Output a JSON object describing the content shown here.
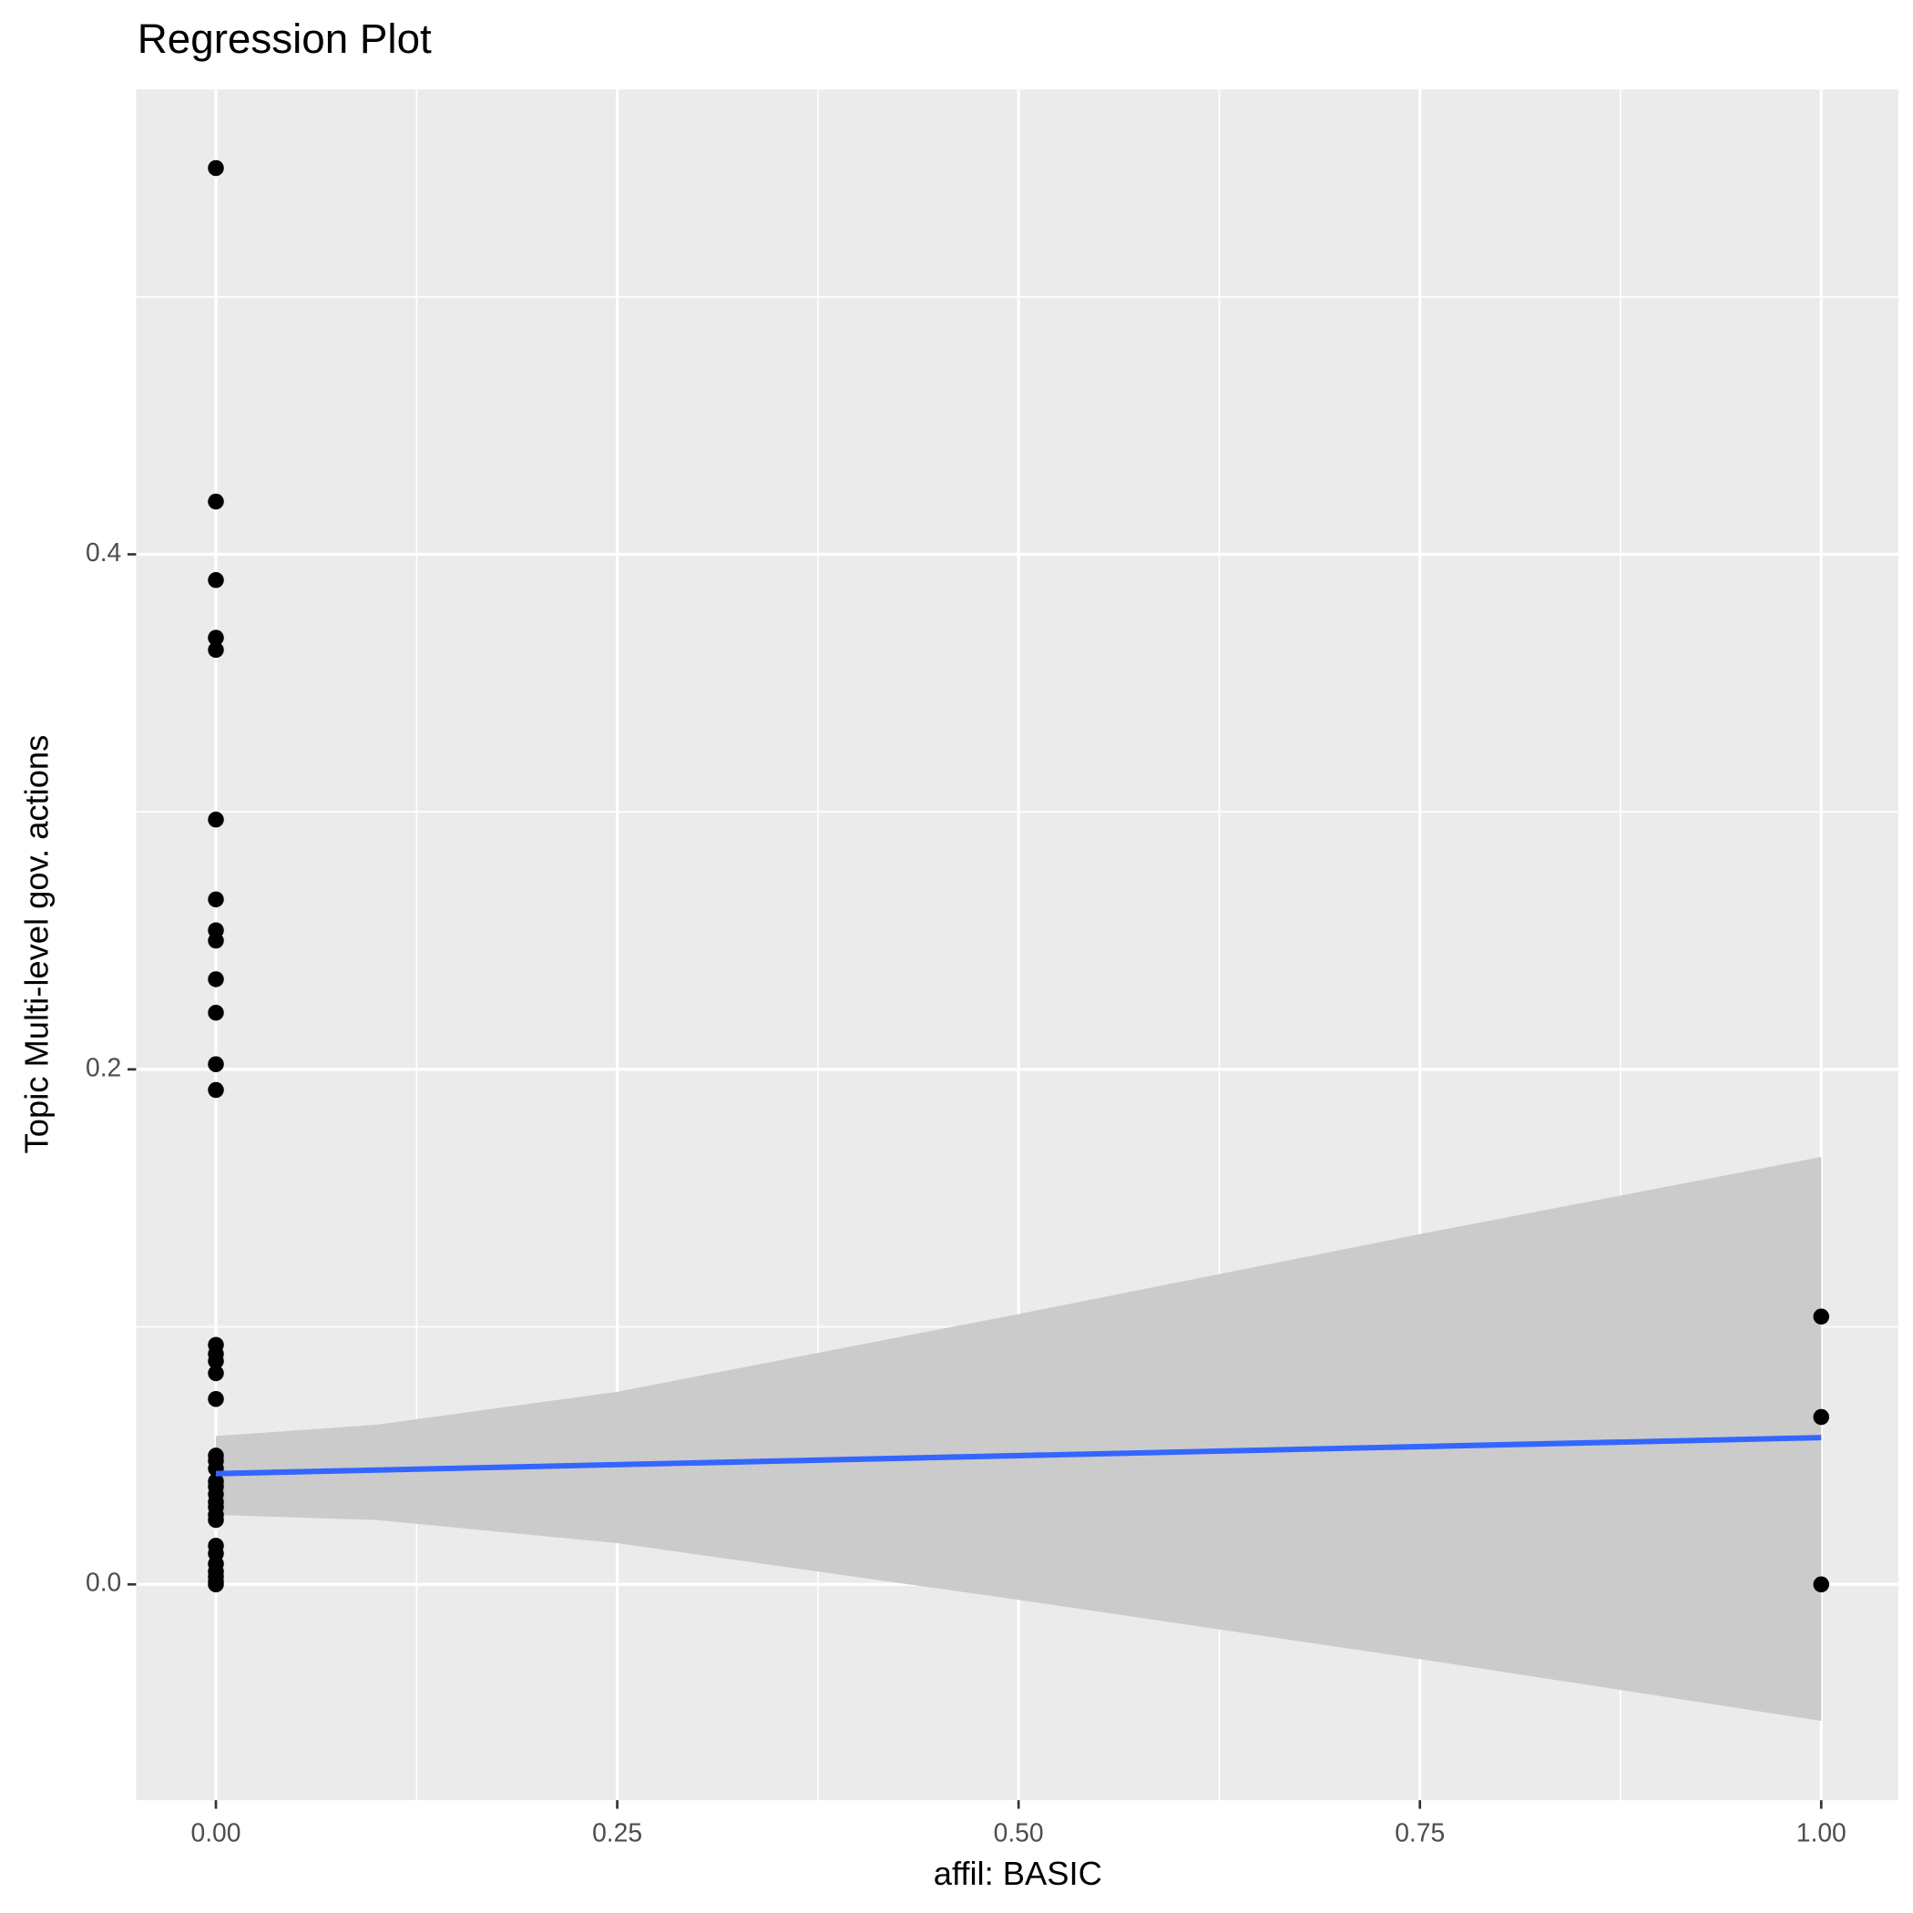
{
  "chart_data": {
    "type": "scatter",
    "title": "Regression Plot",
    "x_label": "affil: BASIC",
    "y_label": "Topic Multi-level gov. actions",
    "xlim": [
      -0.0497,
      1.048
    ],
    "ylim": [
      -0.0838,
      0.5805
    ],
    "xticks": [
      {
        "value": 0,
        "label": "0.00"
      },
      {
        "value": 0.25,
        "label": "0.25"
      },
      {
        "value": 0.5,
        "label": "0.50"
      },
      {
        "value": 0.75,
        "label": "0.75"
      },
      {
        "value": 1,
        "label": "1.00"
      }
    ],
    "yticks": [
      {
        "value": 0,
        "label": "0.0"
      },
      {
        "value": 0.2,
        "label": "0.2"
      },
      {
        "value": 0.4,
        "label": "0.4"
      }
    ],
    "x_minor_ticks": [
      0.125,
      0.375,
      0.625,
      0.875
    ],
    "y_minor_ticks": [
      0.1,
      0.3,
      0.5
    ],
    "grid": true,
    "series": [
      {
        "name": "points",
        "color": "#000000",
        "x": [
          0,
          0,
          0,
          0,
          0,
          0,
          0,
          0,
          0,
          0,
          0,
          0,
          0,
          0,
          0,
          0,
          0,
          0,
          0,
          0,
          0,
          0,
          0,
          0,
          0,
          0,
          0,
          0,
          0,
          0,
          0,
          0,
          0,
          0,
          0,
          1,
          1,
          1
        ],
        "values": [
          0.55,
          0.4205,
          0.39,
          0.3676,
          0.3629,
          0.297,
          0.266,
          0.254,
          0.25,
          0.235,
          0.222,
          0.202,
          0.192,
          0.093,
          0.0895,
          0.0867,
          0.082,
          0.072,
          0.05,
          0.048,
          0.045,
          0.04,
          0.038,
          0.035,
          0.032,
          0.03,
          0.027,
          0.025,
          0.015,
          0.012,
          0.008,
          0.005,
          0.003,
          0.001,
          0,
          0.104,
          0.065,
          0
        ]
      }
    ],
    "fit": {
      "color": "#3366FF",
      "x": [
        0,
        1
      ],
      "values": [
        0.043,
        0.057
      ]
    },
    "band": {
      "color": "#cbcbcb",
      "x": [
        0,
        0.1,
        0.25,
        0.5,
        0.75,
        1
      ],
      "upper": [
        0.0576,
        0.062,
        0.0748,
        0.105,
        0.136,
        0.166
      ],
      "lower": [
        0.027,
        0.025,
        0.016,
        -0.006,
        -0.029,
        -0.053
      ]
    }
  }
}
